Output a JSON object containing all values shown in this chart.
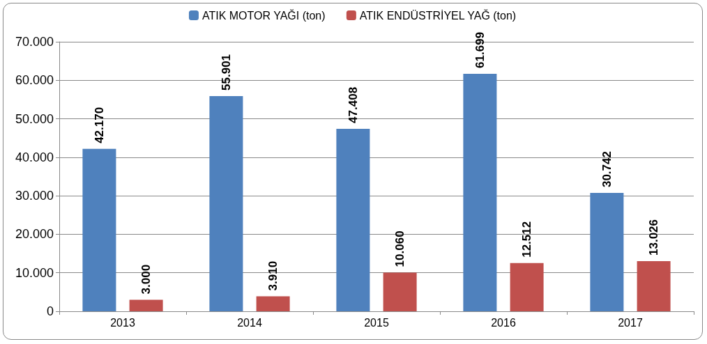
{
  "chart_data": {
    "type": "bar",
    "categories": [
      "2013",
      "2014",
      "2015",
      "2016",
      "2017"
    ],
    "series": [
      {
        "name": "ATIK MOTOR YAĞI (ton)",
        "color": "#4f81bd",
        "values": [
          42170,
          55901,
          47408,
          61699,
          30742
        ],
        "value_labels": [
          "42.170",
          "55.901",
          "47.408",
          "61.699",
          "30.742"
        ]
      },
      {
        "name": "ATIK ENDÜSTRİYEL YAĞ (ton)",
        "color": "#c0504d",
        "values": [
          3000,
          3910,
          10060,
          12512,
          13026
        ],
        "value_labels": [
          "3.000",
          "3.910",
          "10.060",
          "12.512",
          "13.026"
        ]
      }
    ],
    "ylim": [
      0,
      70000
    ],
    "yticks": [
      {
        "value": 0,
        "label": "0"
      },
      {
        "value": 10000,
        "label": "10.000"
      },
      {
        "value": 20000,
        "label": "20.000"
      },
      {
        "value": 30000,
        "label": "30.000"
      },
      {
        "value": 40000,
        "label": "40.000"
      },
      {
        "value": 50000,
        "label": "50.000"
      },
      {
        "value": 60000,
        "label": "60.000"
      },
      {
        "value": 70000,
        "label": "70.000"
      }
    ],
    "grid": "y",
    "legend": "top"
  }
}
